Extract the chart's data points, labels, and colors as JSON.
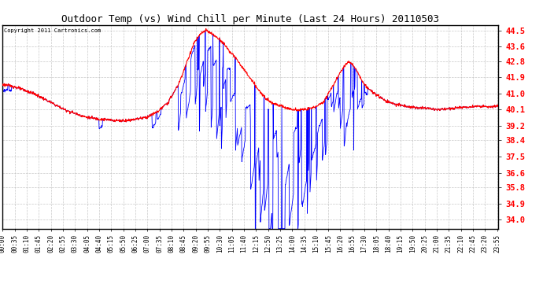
{
  "title": "Outdoor Temp (vs) Wind Chill per Minute (Last 24 Hours) 20110503",
  "copyright": "Copyright 2011 Cartronics.com",
  "yticks": [
    34.0,
    34.9,
    35.8,
    36.6,
    37.5,
    38.4,
    39.2,
    40.1,
    41.0,
    41.9,
    42.8,
    43.6,
    44.5
  ],
  "ymin": 33.5,
  "ymax": 44.8,
  "line_color_red": "#ff0000",
  "line_color_blue": "#0000ff",
  "total_minutes": 1440,
  "figsize": [
    6.9,
    3.75
  ],
  "dpi": 100,
  "red_keypoints_t": [
    0,
    30,
    60,
    90,
    120,
    150,
    180,
    210,
    240,
    270,
    300,
    330,
    360,
    390,
    420,
    450,
    480,
    510,
    540,
    555,
    570,
    580,
    590,
    600,
    615,
    630,
    645,
    660,
    675,
    690,
    705,
    720,
    735,
    750,
    780,
    810,
    840,
    870,
    900,
    930,
    960,
    975,
    990,
    1005,
    1020,
    1035,
    1050,
    1065,
    1080,
    1110,
    1140,
    1170,
    1200,
    1230,
    1260,
    1290,
    1320,
    1350,
    1380,
    1410,
    1440
  ],
  "red_keypoints_v": [
    41.5,
    41.4,
    41.2,
    41.0,
    40.7,
    40.4,
    40.1,
    39.9,
    39.7,
    39.6,
    39.55,
    39.5,
    39.5,
    39.6,
    39.7,
    40.0,
    40.5,
    41.5,
    43.0,
    43.8,
    44.2,
    44.4,
    44.5,
    44.4,
    44.2,
    44.0,
    43.7,
    43.3,
    43.0,
    42.6,
    42.2,
    41.8,
    41.4,
    41.0,
    40.5,
    40.3,
    40.1,
    40.1,
    40.2,
    40.5,
    41.5,
    42.0,
    42.5,
    42.8,
    42.5,
    42.0,
    41.5,
    41.2,
    41.0,
    40.6,
    40.4,
    40.3,
    40.2,
    40.2,
    40.1,
    40.15,
    40.2,
    40.25,
    40.3,
    40.25,
    40.3
  ]
}
